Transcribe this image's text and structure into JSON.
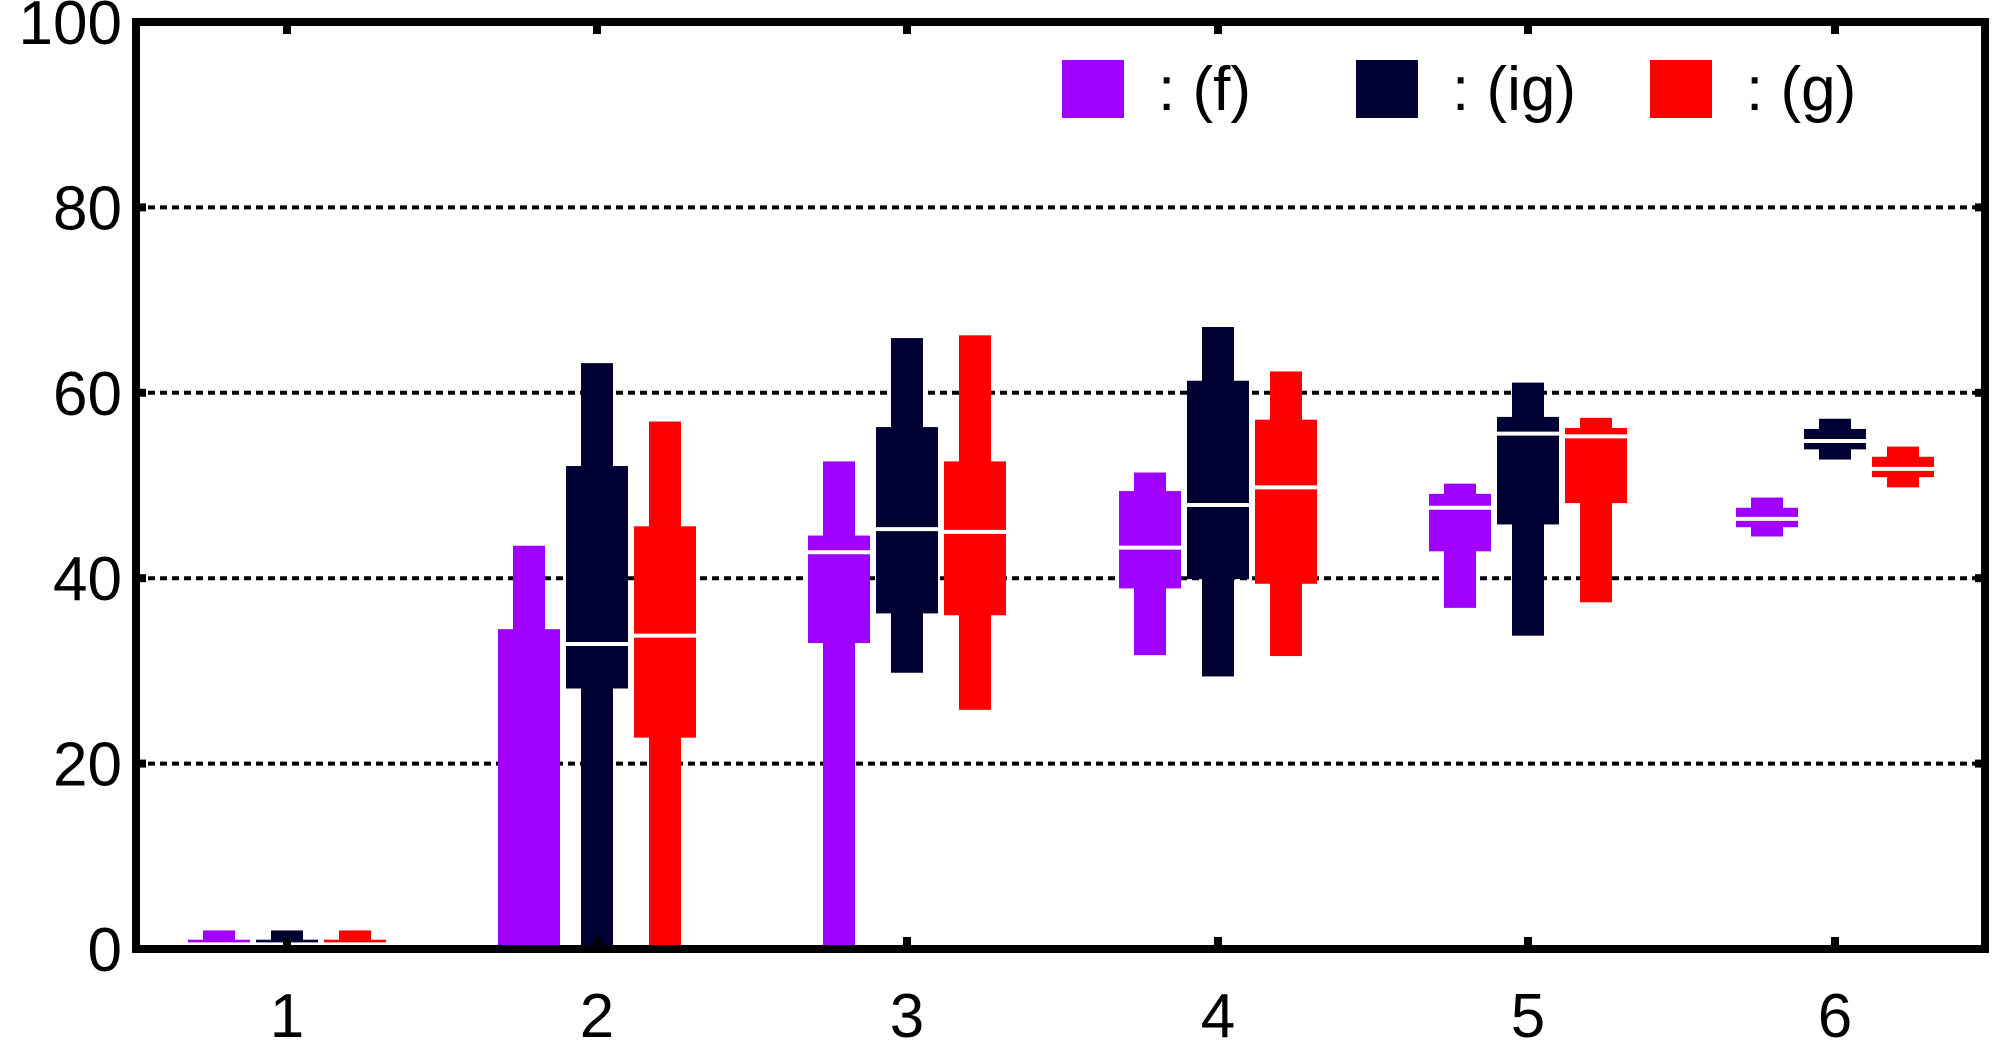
{
  "chart_data": {
    "type": "boxplot",
    "title": "",
    "xlabel": "",
    "ylabel": "",
    "categories": [
      "1",
      "2",
      "3",
      "4",
      "5",
      "6"
    ],
    "ylim": [
      0,
      100
    ],
    "yticks": [
      "0",
      "20",
      "40",
      "60",
      "80",
      "100"
    ],
    "grid": "horizontal dotted",
    "legend_position": "top-right",
    "series": [
      {
        "name": ": (f)",
        "color": "#a000ff",
        "boxes": [
          {
            "min": 0,
            "q1": 0,
            "median": 0.5,
            "q3": 1,
            "max": 2
          },
          {
            "min": 0,
            "q1": 0,
            "median": 0,
            "q3": 34.5,
            "max": 43.5
          },
          {
            "min": 0,
            "q1": 33,
            "median": 42.8,
            "q3": 44.6,
            "max": 52.6
          },
          {
            "min": 31.7,
            "q1": 38.9,
            "median": 43.3,
            "q3": 49.4,
            "max": 51.4
          },
          {
            "min": 36.8,
            "q1": 42.9,
            "median": 47.6,
            "q3": 49.1,
            "max": 50.2
          },
          {
            "min": 44.5,
            "q1": 45.5,
            "median": 46.4,
            "q3": 47.6,
            "max": 48.7
          }
        ]
      },
      {
        "name": ": (ig)",
        "color": "#000033",
        "boxes": [
          {
            "min": 0,
            "q1": 0,
            "median": 0.5,
            "q3": 1,
            "max": 2
          },
          {
            "min": 0,
            "q1": 28.1,
            "median": 32.9,
            "q3": 52.1,
            "max": 63.2
          },
          {
            "min": 29.8,
            "q1": 36.2,
            "median": 45.3,
            "q3": 56.3,
            "max": 65.9
          },
          {
            "min": 29.4,
            "q1": 39.9,
            "median": 47.9,
            "q3": 61.3,
            "max": 67.1
          },
          {
            "min": 33.8,
            "q1": 45.8,
            "median": 55.6,
            "q3": 57.4,
            "max": 61.1
          },
          {
            "min": 52.8,
            "q1": 53.9,
            "median": 54.8,
            "q3": 56.1,
            "max": 57.2
          }
        ]
      },
      {
        "name": ": (g)",
        "color": "#ff0000",
        "boxes": [
          {
            "min": 0,
            "q1": 0,
            "median": 0.5,
            "q3": 1,
            "max": 2
          },
          {
            "min": 0,
            "q1": 22.8,
            "median": 33.8,
            "q3": 45.6,
            "max": 56.9
          },
          {
            "min": 25.8,
            "q1": 36,
            "median": 45,
            "q3": 52.6,
            "max": 66.2
          },
          {
            "min": 31.6,
            "q1": 39.4,
            "median": 49.8,
            "q3": 57.1,
            "max": 62.3
          },
          {
            "min": 37.4,
            "q1": 48.1,
            "median": 55.3,
            "q3": 56.2,
            "max": 57.3
          },
          {
            "min": 49.8,
            "q1": 50.9,
            "median": 51.8,
            "q3": 53.1,
            "max": 54.2
          }
        ]
      }
    ]
  }
}
